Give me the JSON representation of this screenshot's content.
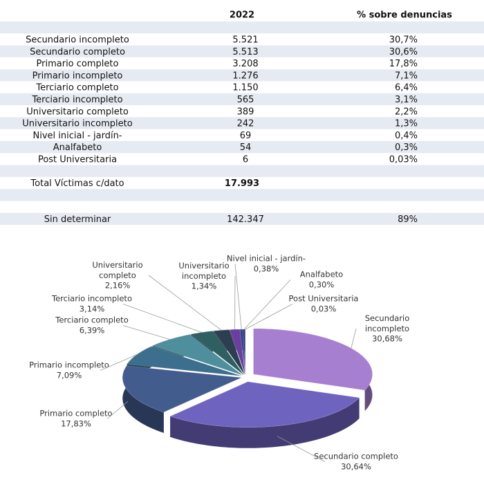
{
  "table": {
    "columns": [
      "2022",
      "% sobre denuncias"
    ],
    "rows": [
      [
        "Secundario incompleto",
        "5.521",
        "30,7%"
      ],
      [
        "Secundario completo",
        "5.513",
        "30,6%"
      ],
      [
        "Primario completo",
        "3.208",
        "17,8%"
      ],
      [
        "Primario incompleto",
        "1.276",
        "7,1%"
      ],
      [
        "Terciario completo",
        "1.150",
        "6,4%"
      ],
      [
        "Terciario incompleto",
        "565",
        "3,1%"
      ],
      [
        "Universitario completo",
        "389",
        "2,2%"
      ],
      [
        "Universitario incompleto",
        "242",
        "1,3%"
      ],
      [
        "Nivel inicial - jardín-",
        "69",
        "0,4%"
      ],
      [
        "Analfabeto",
        "54",
        "0,3%"
      ],
      [
        "Post Universitaria",
        "6",
        "0,03%"
      ]
    ],
    "total": [
      "Total Víctimas c/dato",
      "17.993"
    ],
    "undetermined": [
      "Sin determinar",
      "142.347",
      "89%"
    ]
  },
  "chart_data": {
    "type": "pie",
    "categories": [
      "Secundario incompleto",
      "Secundario completo",
      "Primario completo",
      "Primario incompleto",
      "Terciario completo",
      "Terciario incompleto",
      "Universitario completo",
      "Universitario incompleto",
      "Nivel inicial - jardín-",
      "Analfabeto",
      "Post Universitaria"
    ],
    "values": [
      30.68,
      30.64,
      17.83,
      7.09,
      6.39,
      3.14,
      2.16,
      1.34,
      0.38,
      0.3,
      0.03
    ],
    "value_labels": [
      "30,68%",
      "30,64%",
      "17,83%",
      "7,09%",
      "6,39%",
      "3,14%",
      "2,16%",
      "1,34%",
      "0,38%",
      "0,30%",
      "0,03%"
    ],
    "colors": [
      "#a77fd0",
      "#6f63c0",
      "#435c8e",
      "#3c6f8e",
      "#4f8e9d",
      "#2f5f60",
      "#2c3f52",
      "#6b3f9e",
      "#2e4290",
      "#3a3a70",
      "#556070"
    ]
  }
}
